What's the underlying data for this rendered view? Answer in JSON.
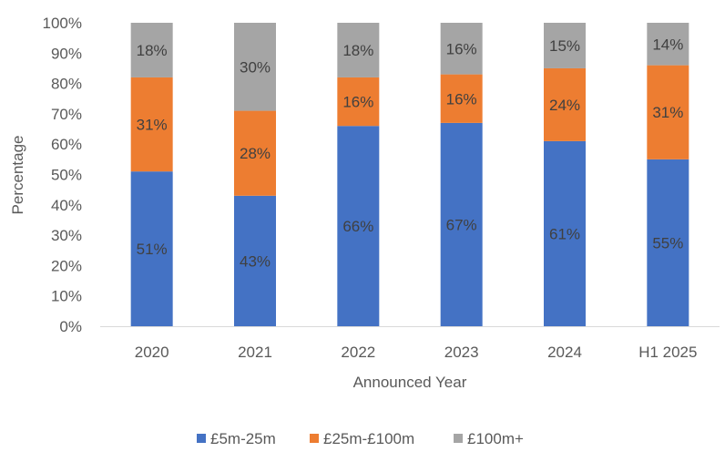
{
  "chart_data": {
    "type": "bar",
    "stacked": true,
    "percent_stacked": true,
    "title": "",
    "xlabel": "Announced Year",
    "ylabel": "Percentage",
    "ylim": [
      0,
      100
    ],
    "yticks": [
      "0%",
      "10%",
      "20%",
      "30%",
      "40%",
      "50%",
      "60%",
      "70%",
      "80%",
      "90%",
      "100%"
    ],
    "grid": false,
    "legend_position": "bottom",
    "categories": [
      "2020",
      "2021",
      "2022",
      "2023",
      "2024",
      "H1 2025"
    ],
    "series": [
      {
        "name": "£5m-25m",
        "color": "#4472C4",
        "values": [
          51,
          43,
          66,
          67,
          61,
          55
        ],
        "labels": [
          "51%",
          "43%",
          "66%",
          "67%",
          "61%",
          "55%"
        ]
      },
      {
        "name": "£25m-£100m",
        "color": "#ED7D31",
        "values": [
          31,
          28,
          16,
          16,
          24,
          31
        ],
        "labels": [
          "31%",
          "28%",
          "16%",
          "16%",
          "24%",
          "31%"
        ]
      },
      {
        "name": "£100m+",
        "color": "#A5A5A5",
        "values": [
          18,
          30,
          18,
          16,
          15,
          14
        ],
        "labels": [
          "18%",
          "30%",
          "18%",
          "16%",
          "15%",
          "14%"
        ]
      }
    ]
  }
}
